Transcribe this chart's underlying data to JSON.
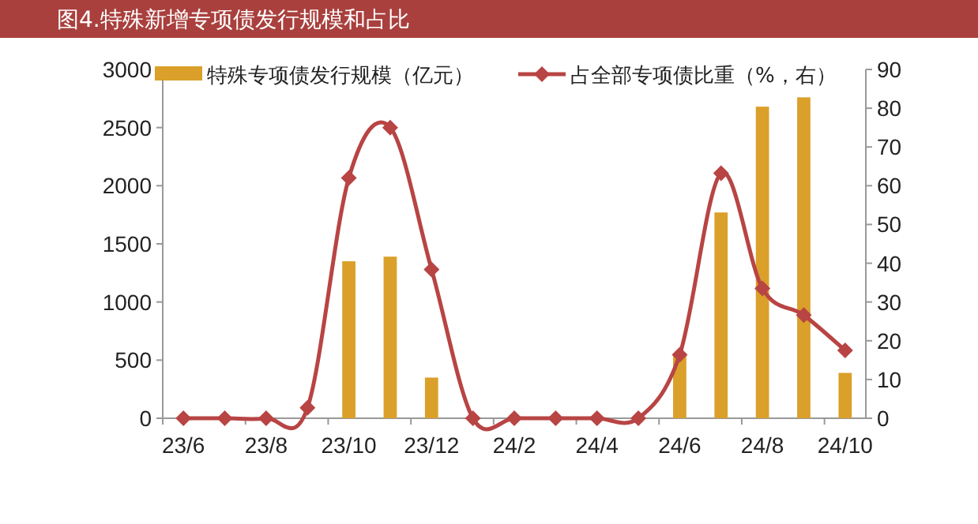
{
  "chart_data": {
    "type": "bar",
    "title": "图4.特殊新增专项债发行规模和占比",
    "categories": [
      "23/6",
      null,
      "23/8",
      null,
      "23/10",
      null,
      "23/12",
      null,
      "24/2",
      null,
      "24/4",
      null,
      "24/6",
      null,
      "24/8",
      null,
      "24/10"
    ],
    "series": [
      {
        "name": "特殊专项债发行规模（亿元）",
        "color": "#daa02a",
        "values": [
          0,
          0,
          0,
          null,
          1350,
          1390,
          350,
          0,
          0,
          0,
          0,
          0,
          550,
          1770,
          2680,
          2760,
          390
        ]
      },
      {
        "name": "占全部专项债比重（%，右）",
        "type": "line",
        "axis": "y2",
        "color": "#b84444",
        "marker": "diamond",
        "values": [
          0,
          0,
          0,
          2.7,
          62,
          75,
          38.4,
          0,
          0,
          0,
          0,
          0,
          16.4,
          63.2,
          33.5,
          26.6,
          17.5
        ]
      }
    ],
    "ylim": [
      0,
      3000
    ],
    "yticks": [
      0,
      500,
      1000,
      1500,
      2000,
      2500,
      3000
    ],
    "y2lim": [
      0,
      90
    ],
    "y2ticks": [
      0,
      10,
      20,
      30,
      40,
      50,
      60,
      70,
      80,
      90
    ],
    "grid": false,
    "legend": "top"
  }
}
